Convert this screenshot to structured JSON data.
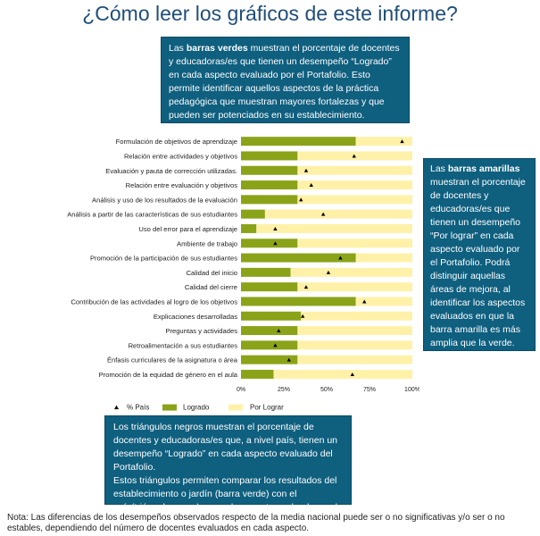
{
  "title": "¿Cómo leer los gráficos de este informe?",
  "colors": {
    "logrado": "#8aa319",
    "por_lograr": "#fff1a8",
    "pais": "#000000",
    "callout": "#0f5f7f"
  },
  "callouts": {
    "green": {
      "pre": "Las ",
      "bold": "barras verdes",
      "post": " muestran el porcentaje de docentes y educadoras/es que tienen un desempeño “Logrado” en cada aspecto evaluado por el Portafolio. Esto permite identificar aquellos aspectos de la práctica pedagógica que muestran mayores fortalezas y que pueden ser potenciados en su establecimiento."
    },
    "yellow": {
      "pre": "Las ",
      "bold": "barras amarillas",
      "post": " muestran el porcentaje de docentes y educadoras/es que tienen un desempeño “Por lograr” en cada aspecto evaluado por el Portafolio. Podrá distinguir aquellas áreas de mejora, al identificar los aspectos evaluados en que la barra amarilla es más amplia que la verde."
    },
    "triangle": {
      "p1": "Los triángulos negros muestran el porcentaje de docentes y educadoras/es que, a nivel país, tienen un desempeño “Logrado” en cada aspecto evaluado del Portafolio.",
      "p2": "Estos triángulos permiten comparar los resultados del establecimiento o jardín (barra verde) con el país(triángulo negro), en cada aspecto evaluado en el Portafolio."
    }
  },
  "chart_data": {
    "type": "bar",
    "orientation": "horizontal",
    "stacked": true,
    "categories": [
      "Formulación de objetivos de aprendizaje",
      "Relación entre actividades y objetivos",
      "Evaluación y pauta de corrección utilizadas.",
      "Relación entre evaluación y objetivos",
      "Análisis y uso de los resultados de la evaluación",
      "Análisis a partir de las características de sus estudiantes",
      "Uso del error para el aprendizaje",
      "Ambiente de trabajo",
      "Promoción de la participación de sus estudiantes",
      "Calidad del inicio",
      "Calidad del cierre",
      "Contribución de las actividades al logro de los objetivos",
      "Explicaciones desarrolladas",
      "Preguntas y actividades",
      "Retroalimentación a sus estudiantes",
      "Énfasis curriculares de la asignatura o área",
      "Promoción de la equidad de género en el aula"
    ],
    "series": [
      {
        "name": "Logrado",
        "values": [
          67,
          33,
          33,
          33,
          33,
          14,
          9,
          33,
          67,
          29,
          33,
          67,
          35,
          33,
          33,
          33,
          19
        ]
      },
      {
        "name": "Por Lograr",
        "values": [
          33,
          67,
          67,
          67,
          67,
          86,
          91,
          67,
          33,
          71,
          67,
          33,
          65,
          67,
          67,
          67,
          81
        ]
      }
    ],
    "pais": {
      "name": "% País",
      "values": [
        94,
        66,
        38,
        41,
        35,
        48,
        20,
        20,
        58,
        51,
        38,
        72,
        36,
        22,
        20,
        28,
        65
      ]
    },
    "xlim": [
      0,
      100
    ],
    "xticks": [
      "0%",
      "25%",
      "50%",
      "75%",
      "100%"
    ],
    "legend": [
      "% País",
      "Logrado",
      "Por Lograr"
    ],
    "legend_position": "bottom",
    "grid": false
  },
  "note": "Nota: Las diferencias de los desempeños observados respecto de la media nacional puede ser o no significativas y/o ser o no estables, dependiendo del número de docentes evaluados en cada aspecto."
}
